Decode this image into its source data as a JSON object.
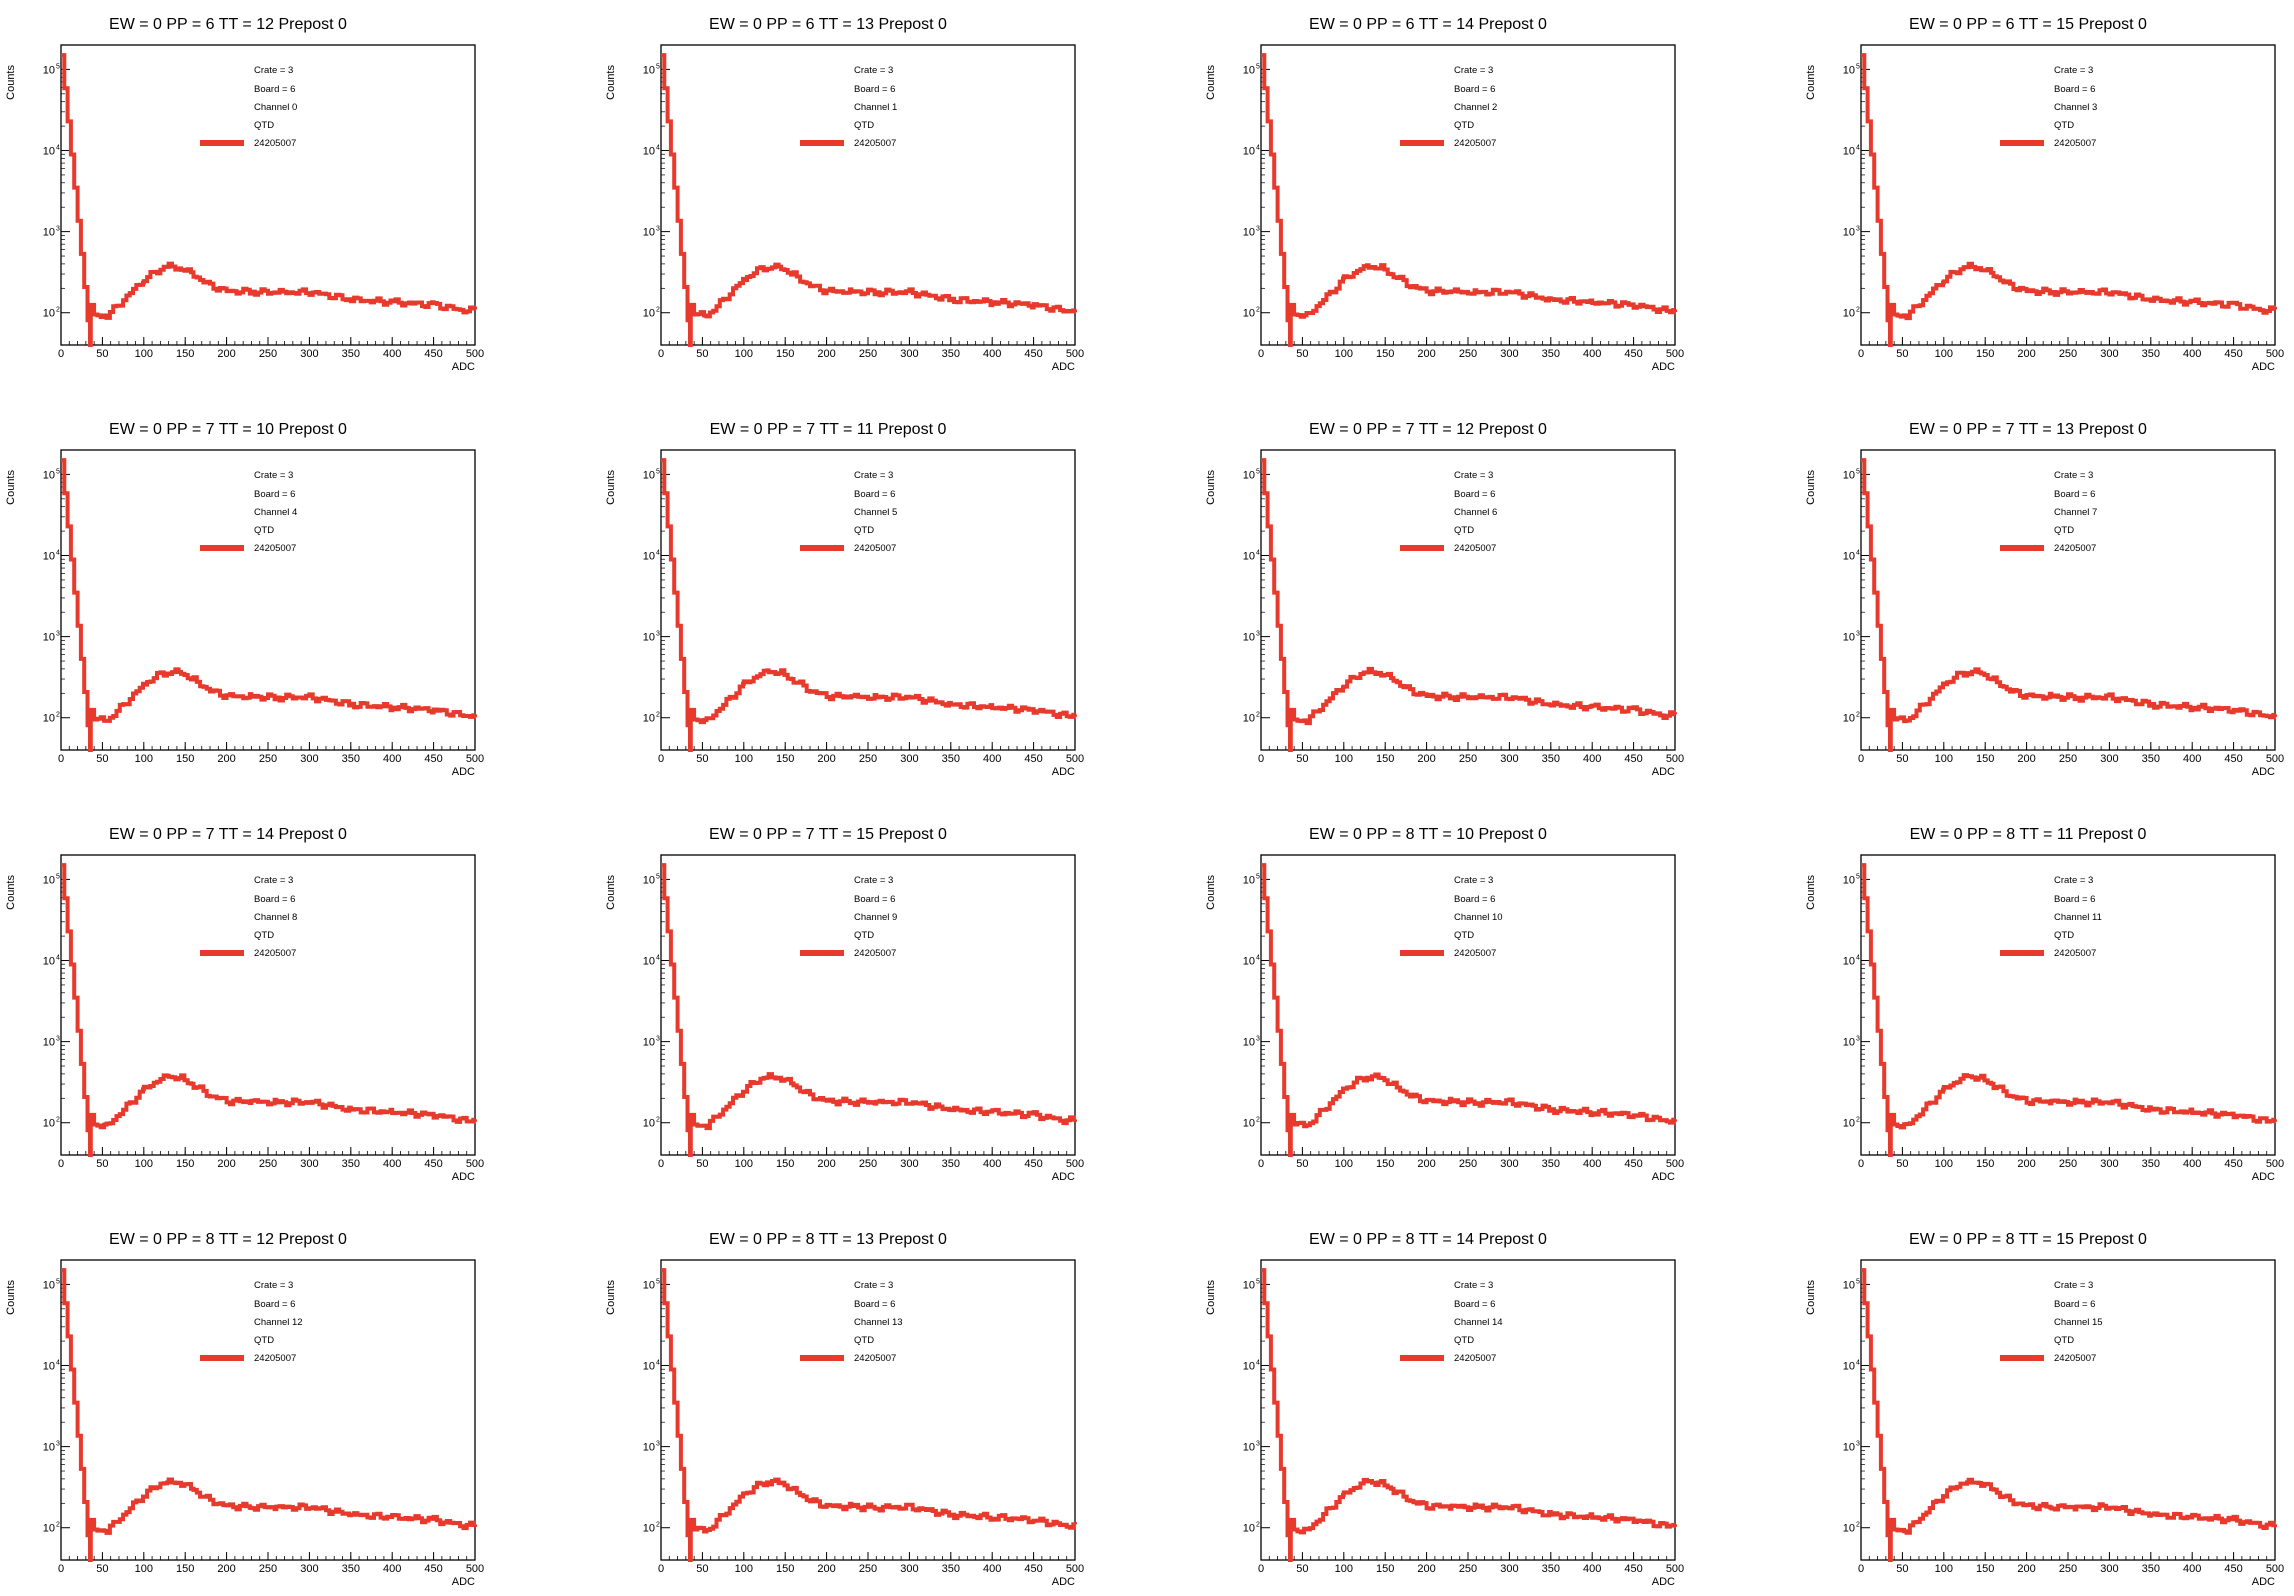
{
  "style": {
    "line_color": "#e8392d",
    "axis_color": "#000000",
    "background": "#ffffff"
  },
  "shared": {
    "xlabel": "ADC",
    "ylabel": "Counts",
    "xticks": [
      0,
      50,
      100,
      150,
      200,
      250,
      300,
      350,
      400,
      450,
      500
    ],
    "yticks": [
      {
        "base": "10",
        "exp": "2",
        "value": 100
      },
      {
        "base": "10",
        "exp": "3",
        "value": 1000
      },
      {
        "base": "10",
        "exp": "4",
        "value": 10000
      },
      {
        "base": "10",
        "exp": "5",
        "value": 100000
      }
    ],
    "legend": {
      "crate": "Crate = 3",
      "board": "Board = 6",
      "type": "QTD",
      "run": "24205007"
    }
  },
  "chart_data": [
    {
      "type": "line",
      "title": "EW = 0 PP = 6 TT = 12 Prepost 0",
      "channel": "Channel 0",
      "xlabel": "ADC",
      "ylabel": "Counts",
      "xlim": [
        0,
        500
      ],
      "ylim": [
        40,
        200000
      ],
      "yscale": "log",
      "series": [
        {
          "name": "24205007",
          "x": [
            0,
            35,
            36,
            40,
            55,
            75,
            100,
            120,
            130,
            145,
            160,
            180,
            200,
            230,
            260,
            300,
            350,
            400,
            450,
            490,
            500
          ],
          "values": [
            150000,
            40,
            125,
            95,
            92,
            145,
            260,
            350,
            370,
            355,
            290,
            215,
            185,
            182,
            178,
            180,
            145,
            135,
            125,
            105,
            110
          ]
        }
      ]
    },
    {
      "type": "line",
      "title": "EW = 0 PP = 6 TT = 13 Prepost 0",
      "channel": "Channel 1",
      "xlabel": "ADC",
      "ylabel": "Counts",
      "xlim": [
        0,
        500
      ],
      "ylim": [
        40,
        200000
      ],
      "yscale": "log",
      "series": [
        {
          "name": "24205007",
          "x": [
            0,
            35,
            36,
            40,
            55,
            75,
            100,
            120,
            130,
            145,
            160,
            180,
            200,
            230,
            260,
            300,
            350,
            400,
            450,
            490,
            500
          ],
          "values": [
            150000,
            40,
            125,
            95,
            92,
            145,
            260,
            350,
            370,
            355,
            290,
            215,
            185,
            182,
            178,
            180,
            145,
            135,
            125,
            105,
            110
          ]
        }
      ]
    },
    {
      "type": "line",
      "title": "EW = 0 PP = 6 TT = 14 Prepost 0",
      "channel": "Channel 2",
      "xlabel": "ADC",
      "ylabel": "Counts",
      "xlim": [
        0,
        500
      ],
      "ylim": [
        40,
        200000
      ],
      "yscale": "log",
      "series": [
        {
          "name": "24205007",
          "x": [
            0,
            35,
            36,
            40,
            55,
            75,
            100,
            120,
            130,
            145,
            160,
            180,
            200,
            230,
            260,
            300,
            350,
            400,
            450,
            490,
            500
          ],
          "values": [
            150000,
            40,
            125,
            95,
            92,
            145,
            260,
            350,
            370,
            355,
            290,
            215,
            185,
            182,
            178,
            180,
            145,
            135,
            125,
            105,
            110
          ]
        }
      ]
    },
    {
      "type": "line",
      "title": "EW = 0 PP = 6 TT = 15 Prepost 0",
      "channel": "Channel 3",
      "xlabel": "ADC",
      "ylabel": "Counts",
      "xlim": [
        0,
        500
      ],
      "ylim": [
        40,
        200000
      ],
      "yscale": "log",
      "series": [
        {
          "name": "24205007",
          "x": [
            0,
            35,
            36,
            40,
            55,
            75,
            100,
            120,
            130,
            145,
            160,
            180,
            200,
            230,
            260,
            300,
            350,
            400,
            450,
            490,
            500
          ],
          "values": [
            150000,
            40,
            125,
            95,
            92,
            145,
            260,
            350,
            370,
            355,
            290,
            215,
            185,
            182,
            178,
            180,
            145,
            135,
            125,
            105,
            110
          ]
        }
      ]
    },
    {
      "type": "line",
      "title": "EW = 0 PP = 7 TT = 10 Prepost 0",
      "channel": "Channel 4",
      "xlabel": "ADC",
      "ylabel": "Counts",
      "xlim": [
        0,
        500
      ],
      "ylim": [
        40,
        200000
      ],
      "yscale": "log",
      "series": [
        {
          "name": "24205007",
          "x": [
            0,
            35,
            36,
            40,
            55,
            75,
            100,
            120,
            130,
            145,
            160,
            180,
            200,
            230,
            260,
            300,
            350,
            400,
            450,
            490,
            500
          ],
          "values": [
            150000,
            40,
            125,
            95,
            92,
            145,
            260,
            350,
            370,
            355,
            290,
            215,
            185,
            182,
            178,
            180,
            145,
            135,
            125,
            105,
            110
          ]
        }
      ]
    },
    {
      "type": "line",
      "title": "EW = 0 PP = 7 TT = 11 Prepost 0",
      "channel": "Channel 5",
      "xlabel": "ADC",
      "ylabel": "Counts",
      "xlim": [
        0,
        500
      ],
      "ylim": [
        40,
        200000
      ],
      "yscale": "log",
      "series": [
        {
          "name": "24205007",
          "x": [
            0,
            35,
            36,
            40,
            55,
            75,
            100,
            120,
            130,
            145,
            160,
            180,
            200,
            230,
            260,
            300,
            350,
            400,
            450,
            490,
            500
          ],
          "values": [
            150000,
            40,
            125,
            95,
            92,
            145,
            260,
            350,
            370,
            355,
            290,
            215,
            185,
            182,
            178,
            180,
            145,
            135,
            125,
            105,
            110
          ]
        }
      ]
    },
    {
      "type": "line",
      "title": "EW = 0 PP = 7 TT = 12 Prepost 0",
      "channel": "Channel 6",
      "xlabel": "ADC",
      "ylabel": "Counts",
      "xlim": [
        0,
        500
      ],
      "ylim": [
        40,
        200000
      ],
      "yscale": "log",
      "series": [
        {
          "name": "24205007",
          "x": [
            0,
            35,
            36,
            40,
            55,
            75,
            100,
            120,
            130,
            145,
            160,
            180,
            200,
            230,
            260,
            300,
            350,
            400,
            450,
            490,
            500
          ],
          "values": [
            150000,
            40,
            125,
            95,
            92,
            145,
            260,
            350,
            370,
            355,
            290,
            215,
            185,
            182,
            178,
            180,
            145,
            135,
            125,
            105,
            110
          ]
        }
      ]
    },
    {
      "type": "line",
      "title": "EW = 0 PP = 7 TT = 13 Prepost 0",
      "channel": "Channel 7",
      "xlabel": "ADC",
      "ylabel": "Counts",
      "xlim": [
        0,
        500
      ],
      "ylim": [
        40,
        200000
      ],
      "yscale": "log",
      "series": [
        {
          "name": "24205007",
          "x": [
            0,
            35,
            36,
            40,
            55,
            75,
            100,
            120,
            130,
            145,
            160,
            180,
            200,
            230,
            260,
            300,
            350,
            400,
            450,
            490,
            500
          ],
          "values": [
            150000,
            40,
            125,
            95,
            92,
            145,
            260,
            350,
            370,
            355,
            290,
            215,
            185,
            182,
            178,
            180,
            145,
            135,
            125,
            105,
            110
          ]
        }
      ]
    },
    {
      "type": "line",
      "title": "EW = 0 PP = 7 TT = 14 Prepost 0",
      "channel": "Channel 8",
      "xlabel": "ADC",
      "ylabel": "Counts",
      "xlim": [
        0,
        500
      ],
      "ylim": [
        40,
        200000
      ],
      "yscale": "log",
      "series": [
        {
          "name": "24205007",
          "x": [
            0,
            35,
            36,
            40,
            55,
            75,
            100,
            120,
            130,
            145,
            160,
            180,
            200,
            230,
            260,
            300,
            350,
            400,
            450,
            490,
            500
          ],
          "values": [
            150000,
            40,
            125,
            95,
            92,
            145,
            260,
            350,
            370,
            355,
            290,
            215,
            185,
            182,
            178,
            180,
            145,
            135,
            125,
            105,
            110
          ]
        }
      ]
    },
    {
      "type": "line",
      "title": "EW = 0 PP = 7 TT = 15 Prepost 0",
      "channel": "Channel 9",
      "xlabel": "ADC",
      "ylabel": "Counts",
      "xlim": [
        0,
        500
      ],
      "ylim": [
        40,
        200000
      ],
      "yscale": "log",
      "series": [
        {
          "name": "24205007",
          "x": [
            0,
            35,
            36,
            40,
            55,
            75,
            100,
            120,
            130,
            145,
            160,
            180,
            200,
            230,
            260,
            300,
            350,
            400,
            450,
            490,
            500
          ],
          "values": [
            150000,
            40,
            125,
            95,
            92,
            145,
            260,
            350,
            370,
            355,
            290,
            215,
            185,
            182,
            178,
            180,
            145,
            135,
            125,
            105,
            110
          ]
        }
      ]
    },
    {
      "type": "line",
      "title": "EW = 0 PP = 8 TT = 10 Prepost 0",
      "channel": "Channel 10",
      "xlabel": "ADC",
      "ylabel": "Counts",
      "xlim": [
        0,
        500
      ],
      "ylim": [
        40,
        200000
      ],
      "yscale": "log",
      "series": [
        {
          "name": "24205007",
          "x": [
            0,
            35,
            36,
            40,
            55,
            75,
            100,
            120,
            130,
            145,
            160,
            180,
            200,
            230,
            260,
            300,
            350,
            400,
            450,
            490,
            500
          ],
          "values": [
            150000,
            40,
            125,
            95,
            92,
            145,
            260,
            350,
            370,
            355,
            290,
            215,
            185,
            182,
            178,
            180,
            145,
            135,
            125,
            105,
            110
          ]
        }
      ]
    },
    {
      "type": "line",
      "title": "EW = 0 PP = 8 TT = 11 Prepost 0",
      "channel": "Channel 11",
      "xlabel": "ADC",
      "ylabel": "Counts",
      "xlim": [
        0,
        500
      ],
      "ylim": [
        40,
        200000
      ],
      "yscale": "log",
      "series": [
        {
          "name": "24205007",
          "x": [
            0,
            35,
            36,
            40,
            55,
            75,
            100,
            120,
            130,
            145,
            160,
            180,
            200,
            230,
            260,
            300,
            350,
            400,
            450,
            490,
            500
          ],
          "values": [
            150000,
            40,
            125,
            95,
            92,
            145,
            260,
            350,
            370,
            355,
            290,
            215,
            185,
            182,
            178,
            180,
            145,
            135,
            125,
            105,
            110
          ]
        }
      ]
    },
    {
      "type": "line",
      "title": "EW = 0 PP = 8 TT = 12 Prepost 0",
      "channel": "Channel 12",
      "xlabel": "ADC",
      "ylabel": "Counts",
      "xlim": [
        0,
        500
      ],
      "ylim": [
        40,
        200000
      ],
      "yscale": "log",
      "series": [
        {
          "name": "24205007",
          "x": [
            0,
            35,
            36,
            40,
            55,
            75,
            100,
            120,
            130,
            145,
            160,
            180,
            200,
            230,
            260,
            300,
            350,
            400,
            450,
            490,
            500
          ],
          "values": [
            150000,
            40,
            125,
            95,
            92,
            145,
            260,
            350,
            370,
            355,
            290,
            215,
            185,
            182,
            178,
            180,
            145,
            135,
            125,
            105,
            110
          ]
        }
      ]
    },
    {
      "type": "line",
      "title": "EW = 0 PP = 8 TT = 13 Prepost 0",
      "channel": "Channel 13",
      "xlabel": "ADC",
      "ylabel": "Counts",
      "xlim": [
        0,
        500
      ],
      "ylim": [
        40,
        200000
      ],
      "yscale": "log",
      "series": [
        {
          "name": "24205007",
          "x": [
            0,
            35,
            36,
            40,
            55,
            75,
            100,
            120,
            130,
            145,
            160,
            180,
            200,
            230,
            260,
            300,
            350,
            400,
            450,
            490,
            500
          ],
          "values": [
            150000,
            40,
            125,
            95,
            92,
            145,
            260,
            350,
            370,
            355,
            290,
            215,
            185,
            182,
            178,
            180,
            145,
            135,
            125,
            105,
            110
          ]
        }
      ]
    },
    {
      "type": "line",
      "title": "EW = 0 PP = 8 TT = 14 Prepost 0",
      "channel": "Channel 14",
      "xlabel": "ADC",
      "ylabel": "Counts",
      "xlim": [
        0,
        500
      ],
      "ylim": [
        40,
        200000
      ],
      "yscale": "log",
      "series": [
        {
          "name": "24205007",
          "x": [
            0,
            35,
            36,
            40,
            55,
            75,
            100,
            120,
            130,
            145,
            160,
            180,
            200,
            230,
            260,
            300,
            350,
            400,
            450,
            490,
            500
          ],
          "values": [
            150000,
            40,
            125,
            95,
            92,
            145,
            260,
            350,
            370,
            355,
            290,
            215,
            185,
            182,
            178,
            180,
            145,
            135,
            125,
            105,
            110
          ]
        }
      ]
    },
    {
      "type": "line",
      "title": "EW = 0 PP = 8 TT = 15 Prepost 0",
      "channel": "Channel 15",
      "xlabel": "ADC",
      "ylabel": "Counts",
      "xlim": [
        0,
        500
      ],
      "ylim": [
        40,
        200000
      ],
      "yscale": "log",
      "series": [
        {
          "name": "24205007",
          "x": [
            0,
            35,
            36,
            40,
            55,
            75,
            100,
            120,
            130,
            145,
            160,
            180,
            200,
            230,
            260,
            300,
            350,
            400,
            450,
            490,
            500
          ],
          "values": [
            150000,
            40,
            125,
            95,
            92,
            145,
            260,
            350,
            370,
            355,
            290,
            215,
            185,
            182,
            178,
            180,
            145,
            135,
            125,
            105,
            110
          ]
        }
      ]
    }
  ]
}
